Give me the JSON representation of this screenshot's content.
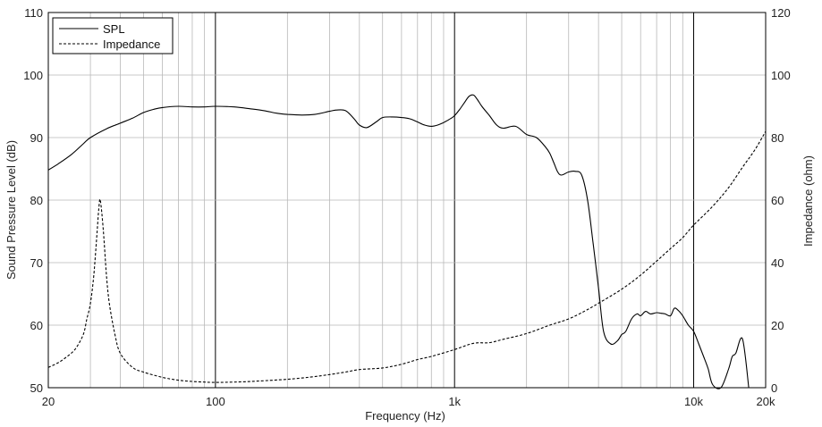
{
  "chart_data": {
    "type": "line",
    "xlabel": "Frequency (Hz)",
    "ylabel_left": "Sound Pressure Level (dB)",
    "ylabel_right": "Impedance (ohm)",
    "x_scale": "log",
    "xlim": [
      20,
      20000
    ],
    "ylim_left": [
      50,
      110
    ],
    "ylim_right": [
      0,
      120
    ],
    "x_ticks": [
      {
        "value": 20,
        "label": "20"
      },
      {
        "value": 100,
        "label": "100"
      },
      {
        "value": 1000,
        "label": "1k"
      },
      {
        "value": 10000,
        "label": "10k"
      },
      {
        "value": 20000,
        "label": "20k"
      }
    ],
    "y_ticks_left": [
      "50",
      "60",
      "70",
      "80",
      "90",
      "100",
      "110"
    ],
    "y_ticks_right": [
      "0",
      "20",
      "40",
      "60",
      "80",
      "100",
      "120"
    ],
    "grid": true,
    "legend_position": "top-left",
    "series": [
      {
        "name": "SPL",
        "axis": "left",
        "style": "solid",
        "color": "#000000",
        "x": [
          20,
          22,
          25,
          28,
          30,
          35,
          40,
          45,
          50,
          55,
          60,
          70,
          80,
          90,
          100,
          120,
          140,
          160,
          180,
          200,
          230,
          260,
          300,
          320,
          350,
          380,
          400,
          430,
          470,
          500,
          550,
          600,
          650,
          700,
          750,
          800,
          850,
          900,
          950,
          1000,
          1050,
          1100,
          1150,
          1200,
          1250,
          1300,
          1400,
          1500,
          1600,
          1800,
          2000,
          2200,
          2400,
          2500,
          2600,
          2700,
          2800,
          3000,
          3200,
          3400,
          3600,
          3800,
          4000,
          4200,
          4500,
          4800,
          5000,
          5200,
          5500,
          5800,
          6000,
          6300,
          6600,
          7000,
          7300,
          7600,
          8000,
          8300,
          8600,
          9000,
          9500,
          10000,
          10500,
          11000,
          11500,
          12000,
          13000,
          14000,
          14500,
          15000,
          16000,
          17000
        ],
        "y": [
          84.8,
          85.8,
          87.3,
          89,
          90,
          91.4,
          92.3,
          93.1,
          94,
          94.5,
          94.8,
          95,
          94.9,
          94.9,
          95,
          94.9,
          94.6,
          94.3,
          93.9,
          93.7,
          93.6,
          93.7,
          94.2,
          94.4,
          94.3,
          93,
          92,
          91.6,
          92.5,
          93.2,
          93.3,
          93.2,
          93,
          92.5,
          92,
          91.8,
          92,
          92.4,
          92.9,
          93.5,
          94.5,
          95.6,
          96.6,
          96.8,
          96,
          95,
          93.5,
          92,
          91.5,
          91.8,
          90.5,
          90,
          88.5,
          87.5,
          86,
          84.5,
          84,
          84.5,
          84.6,
          84,
          80,
          73,
          66,
          59,
          57,
          57.5,
          58.5,
          59,
          61,
          61.8,
          61.5,
          62.2,
          61.8,
          62,
          61.9,
          61.8,
          61.5,
          62.7,
          62.4,
          61.5,
          60,
          59,
          57,
          55,
          53,
          50.5,
          50,
          53,
          55,
          55.5,
          57.8,
          50
        ]
      },
      {
        "name": "Impedance",
        "axis": "right",
        "style": "dashed",
        "color": "#000000",
        "x": [
          20,
          22,
          24,
          26,
          28,
          29,
          30,
          31,
          32,
          32.5,
          33,
          34,
          35,
          36,
          38,
          40,
          45,
          50,
          60,
          70,
          80,
          90,
          100,
          120,
          150,
          200,
          250,
          300,
          350,
          400,
          500,
          600,
          700,
          800,
          1000,
          1200,
          1400,
          1600,
          2000,
          2500,
          3000,
          3500,
          4000,
          5000,
          6000,
          7000,
          8000,
          9000,
          10000,
          12000,
          14000,
          16000,
          18000,
          20000
        ],
        "y": [
          6.5,
          8,
          10,
          12.5,
          17,
          22,
          27,
          36,
          50,
          57,
          60,
          50,
          36,
          27,
          17,
          11,
          6.5,
          5,
          3.3,
          2.4,
          2,
          1.8,
          1.7,
          1.8,
          2.1,
          2.7,
          3.4,
          4.2,
          5,
          5.8,
          6.3,
          7.5,
          9,
          10,
          12.2,
          14.2,
          14.4,
          15.5,
          17.3,
          20,
          22,
          24.5,
          27,
          31.5,
          36,
          40.5,
          44.5,
          48,
          52,
          58,
          64,
          70.5,
          76,
          82
        ]
      }
    ]
  }
}
